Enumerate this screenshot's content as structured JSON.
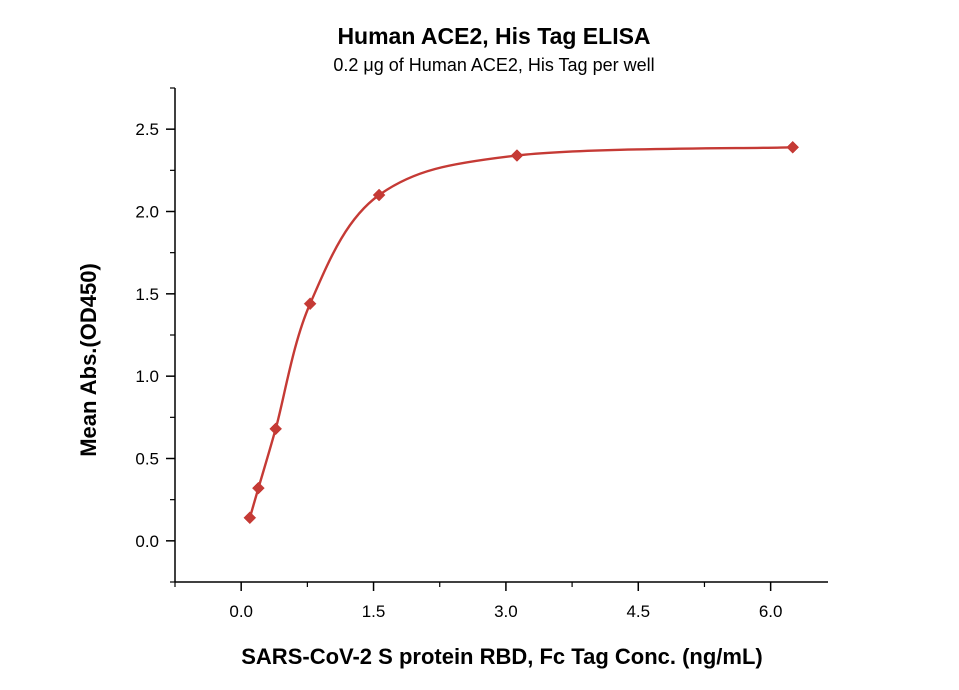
{
  "chart_data": {
    "type": "scatter",
    "title": "Human ACE2, His Tag ELISA",
    "subtitle": "0.2 μg of Human ACE2, His Tag per well",
    "xlabel": "SARS-CoV-2 S protein RBD, Fc Tag Conc. (ng/mL)",
    "ylabel": "Mean Abs.(OD450)",
    "xlim": [
      -0.75,
      6.65
    ],
    "ylim": [
      -0.25,
      2.75
    ],
    "x_ticks": [
      "0.0",
      "1.5",
      "3.0",
      "4.5",
      "6.0"
    ],
    "y_ticks": [
      "0.0",
      "0.5",
      "1.0",
      "1.5",
      "2.0",
      "2.5"
    ],
    "series": [
      {
        "color": "#c53a35",
        "marker": "diamond",
        "points": [
          {
            "x": 0.098,
            "y": 0.14
          },
          {
            "x": 0.195,
            "y": 0.32
          },
          {
            "x": 0.391,
            "y": 0.68
          },
          {
            "x": 0.781,
            "y": 1.44
          },
          {
            "x": 1.563,
            "y": 2.1
          },
          {
            "x": 3.125,
            "y": 2.34
          },
          {
            "x": 6.25,
            "y": 2.39
          }
        ],
        "fit": "sigmoidal"
      }
    ],
    "grid": false,
    "legend": "none"
  }
}
